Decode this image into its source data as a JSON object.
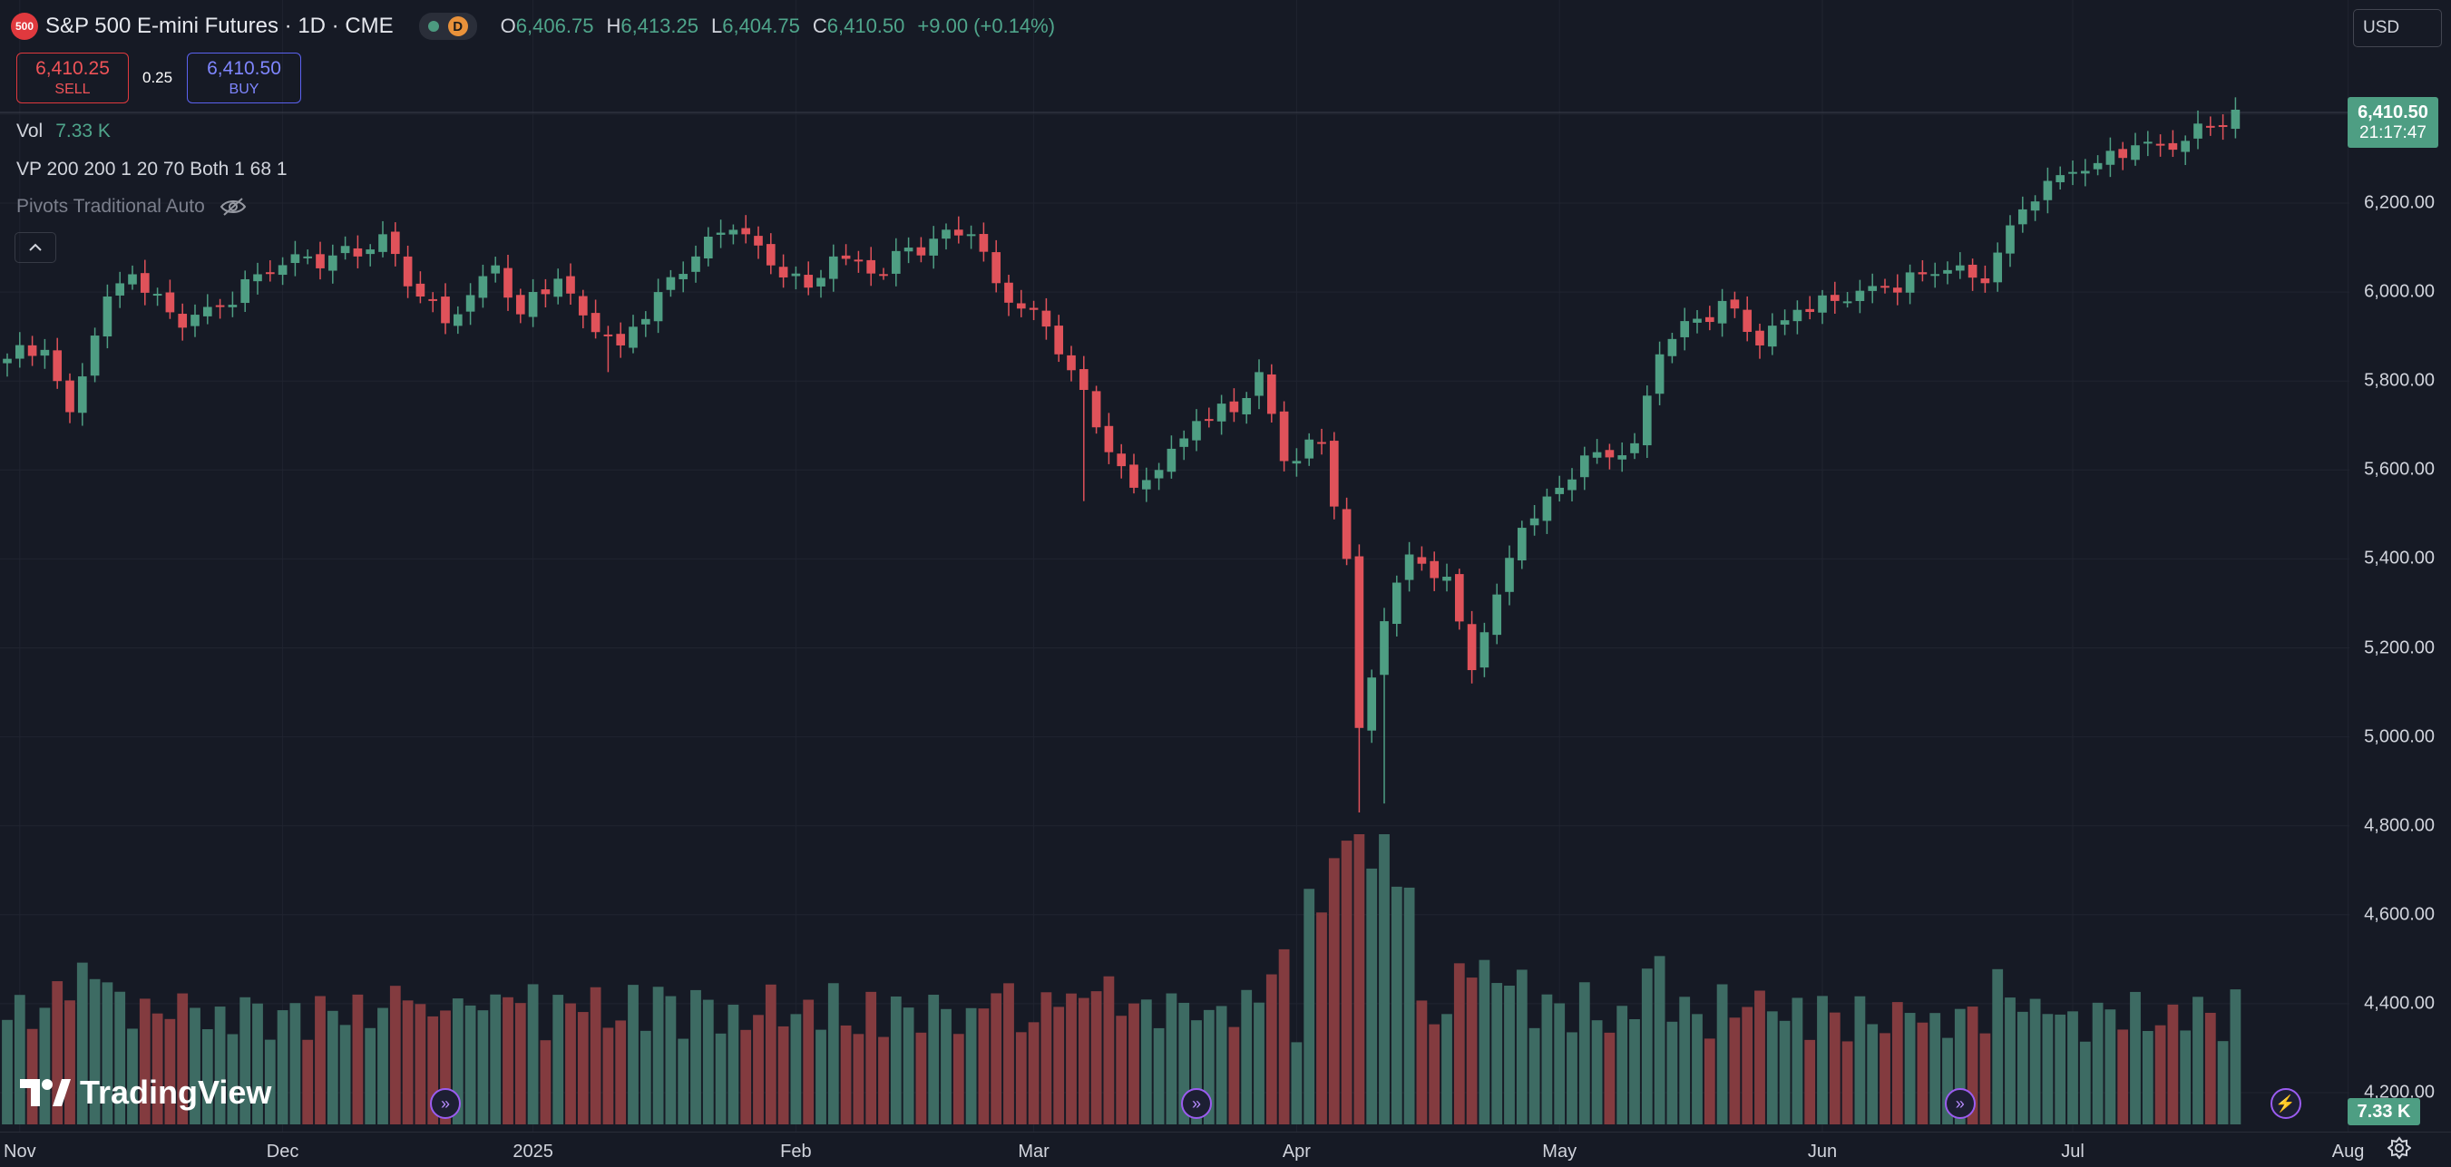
{
  "header": {
    "symbol_badge": "500",
    "title": "S&P 500 E-mini Futures · 1D · CME",
    "interval_badge": "D",
    "ohlc": [
      {
        "key": "O",
        "value": "6,406.75"
      },
      {
        "key": "H",
        "value": "6,413.25"
      },
      {
        "key": "L",
        "value": "6,404.75"
      },
      {
        "key": "C",
        "value": "6,410.50"
      },
      {
        "key": "",
        "value": "+9.00 (+0.14%)"
      }
    ]
  },
  "trade": {
    "sell_price": "6,410.25",
    "sell_label": "SELL",
    "spread": "0.25",
    "buy_price": "6,410.50",
    "buy_label": "BUY"
  },
  "indicators": {
    "vol_label": "Vol",
    "vol_value": "7.33 K",
    "vp": "VP 200 200 1 20 70 Both 1 68 1",
    "pivots": "Pivots Traditional Auto"
  },
  "currency": "USD",
  "last_price": {
    "price": "6,410.50",
    "countdown": "21:17:47"
  },
  "volume_label": "7.33 K",
  "branding": "TradingView",
  "icons": [
    "collapse-chevron-icon",
    "eye-off-icon",
    "tradingview-logo-icon",
    "event-icon",
    "lightning-icon",
    "settings-icon"
  ],
  "colors": {
    "up": "#4e9e83",
    "down": "#e0525a",
    "vol_up": "#3d6b63",
    "vol_down": "#833b3f",
    "background": "#161a25",
    "grid": "#202430"
  },
  "price_ticks": [
    4200,
    4400,
    4600,
    4800,
    5000,
    5200,
    5400,
    5600,
    5800,
    6000,
    6200,
    6400
  ],
  "price_tick_labels": [
    "4,200.00",
    "4,400.00",
    "4,600.00",
    "4,800.00",
    "5,000.00",
    "5,200.00",
    "5,400.00",
    "5,600.00",
    "5,800.00",
    "6,000.00",
    "6,200.00"
  ],
  "time_ticks": [
    {
      "label": "Nov",
      "index": 1
    },
    {
      "label": "Dec",
      "index": 22
    },
    {
      "label": "2025",
      "index": 42
    },
    {
      "label": "Feb",
      "index": 63
    },
    {
      "label": "Mar",
      "index": 82
    },
    {
      "label": "Apr",
      "index": 103
    },
    {
      "label": "May",
      "index": 124
    },
    {
      "label": "Jun",
      "index": 145
    },
    {
      "label": "Jul",
      "index": 165
    },
    {
      "label": "Aug",
      "index": 187
    }
  ],
  "events": [
    {
      "index": 35,
      "icon": "event-icon"
    },
    {
      "index": 95,
      "icon": "event-icon"
    },
    {
      "index": 156,
      "icon": "event-icon"
    },
    {
      "index": 182,
      "icon": "lightning-icon"
    }
  ],
  "chart_data": {
    "type": "candlestick",
    "title": "S&P 500 E-mini Futures · 1D · CME",
    "ylim": [
      4200,
      6450
    ],
    "x_categories": [
      "Nov",
      "Dec",
      "2025",
      "Feb",
      "Mar",
      "Apr",
      "May",
      "Jun",
      "Jul",
      "Aug"
    ],
    "waypoints_close": [
      [
        0,
        5850
      ],
      [
        3,
        5870
      ],
      [
        5,
        5730
      ],
      [
        8,
        5990
      ],
      [
        10,
        6040
      ],
      [
        14,
        5920
      ],
      [
        17,
        5970
      ],
      [
        20,
        6040
      ],
      [
        24,
        6080
      ],
      [
        28,
        6080
      ],
      [
        30,
        6130
      ],
      [
        33,
        5990
      ],
      [
        35,
        5930
      ],
      [
        39,
        6060
      ],
      [
        41,
        5950
      ],
      [
        44,
        6030
      ],
      [
        47,
        5910
      ],
      [
        49,
        5880
      ],
      [
        52,
        6000
      ],
      [
        55,
        6080
      ],
      [
        58,
        6140
      ],
      [
        59,
        6130
      ],
      [
        61,
        6060
      ],
      [
        64,
        6010
      ],
      [
        66,
        6080
      ],
      [
        70,
        6040
      ],
      [
        72,
        6100
      ],
      [
        74,
        6120
      ],
      [
        77,
        6130
      ],
      [
        79,
        6020
      ],
      [
        82,
        5960
      ],
      [
        84,
        5860
      ],
      [
        86,
        5780
      ],
      [
        88,
        5640
      ],
      [
        90,
        5560
      ],
      [
        92,
        5600
      ],
      [
        95,
        5710
      ],
      [
        98,
        5730
      ],
      [
        100,
        5820
      ],
      [
        102,
        5620
      ],
      [
        105,
        5660
      ],
      [
        107,
        5400
      ],
      [
        108,
        5020
      ],
      [
        110,
        5260
      ],
      [
        112,
        5410
      ],
      [
        115,
        5360
      ],
      [
        117,
        5150
      ],
      [
        119,
        5320
      ],
      [
        121,
        5470
      ],
      [
        124,
        5560
      ],
      [
        127,
        5640
      ],
      [
        130,
        5660
      ],
      [
        132,
        5860
      ],
      [
        135,
        5940
      ],
      [
        137,
        5980
      ],
      [
        140,
        5880
      ],
      [
        143,
        5960
      ],
      [
        146,
        5980
      ],
      [
        150,
        6010
      ],
      [
        153,
        6040
      ],
      [
        156,
        6060
      ],
      [
        158,
        6020
      ],
      [
        160,
        6150
      ],
      [
        163,
        6250
      ],
      [
        165,
        6270
      ],
      [
        167,
        6290
      ],
      [
        170,
        6330
      ],
      [
        172,
        6330
      ],
      [
        174,
        6340
      ],
      [
        176,
        6370
      ],
      [
        178,
        6410
      ]
    ],
    "wicks": [
      {
        "index": 108,
        "low": 4830
      },
      {
        "index": 110,
        "low": 4850
      },
      {
        "index": 117,
        "low": 5120
      },
      {
        "index": 48,
        "low": 5820
      },
      {
        "index": 86,
        "low": 5530
      }
    ],
    "volume_ylim": [
      0,
      1
    ]
  }
}
